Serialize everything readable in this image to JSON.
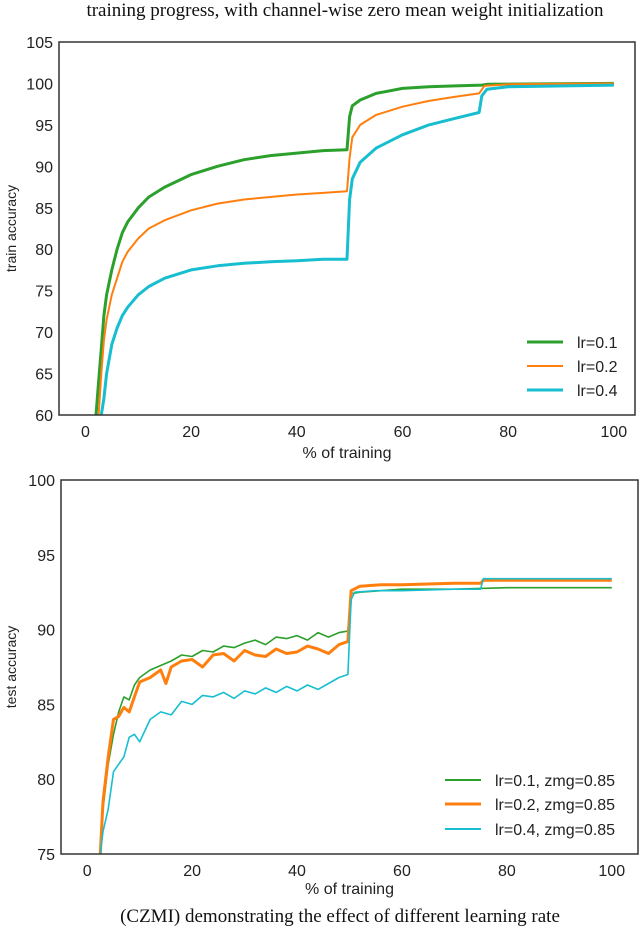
{
  "figure_title": "training progress, with channel-wise zero mean weight initialization",
  "caption": "(CZMI) demonstrating the effect of different learning rate",
  "colors": {
    "lr_0.1": "#2ca02c",
    "lr_0.2": "#ff7f0e",
    "lr_0.4": "#17becf"
  },
  "chart_data": [
    {
      "type": "line",
      "xlabel": "% of training",
      "ylabel": "train accuracy",
      "xlim": [
        -5,
        104
      ],
      "ylim": [
        60,
        105
      ],
      "xticks": [
        "0",
        "20",
        "40",
        "60",
        "80",
        "100"
      ],
      "yticks": [
        "60",
        "65",
        "70",
        "75",
        "80",
        "85",
        "90",
        "95",
        "100",
        "105"
      ],
      "grid": false,
      "legend_position": "bottom-right",
      "series": [
        {
          "name": "lr=0.1",
          "color": "#2ca02c",
          "points": [
            [
              2,
              60
            ],
            [
              2.5,
              64
            ],
            [
              3,
              68
            ],
            [
              3.5,
              72
            ],
            [
              4,
              74.5
            ],
            [
              5,
              77.5
            ],
            [
              6,
              80
            ],
            [
              7,
              82
            ],
            [
              8,
              83.3
            ],
            [
              10,
              85
            ],
            [
              12,
              86.3
            ],
            [
              15,
              87.5
            ],
            [
              20,
              89
            ],
            [
              25,
              90
            ],
            [
              30,
              90.8
            ],
            [
              35,
              91.3
            ],
            [
              40,
              91.6
            ],
            [
              45,
              91.9
            ],
            [
              49.5,
              92
            ],
            [
              50,
              96
            ],
            [
              50.5,
              97.3
            ],
            [
              52,
              98
            ],
            [
              55,
              98.8
            ],
            [
              60,
              99.4
            ],
            [
              65,
              99.6
            ],
            [
              70,
              99.7
            ],
            [
              75,
              99.8
            ],
            [
              76,
              99.9
            ],
            [
              100,
              100
            ]
          ]
        },
        {
          "name": "lr=0.2",
          "color": "#ff7f0e",
          "points": [
            [
              2.5,
              60
            ],
            [
              3,
              65
            ],
            [
              3.5,
              69
            ],
            [
              4,
              71.5
            ],
            [
              5,
              74.5
            ],
            [
              6,
              76.5
            ],
            [
              7,
              78.5
            ],
            [
              8,
              79.7
            ],
            [
              10,
              81.3
            ],
            [
              12,
              82.5
            ],
            [
              15,
              83.5
            ],
            [
              20,
              84.7
            ],
            [
              25,
              85.5
            ],
            [
              30,
              86
            ],
            [
              35,
              86.3
            ],
            [
              40,
              86.6
            ],
            [
              45,
              86.8
            ],
            [
              49.5,
              87
            ],
            [
              50,
              91
            ],
            [
              50.5,
              93.5
            ],
            [
              52,
              95
            ],
            [
              55,
              96.2
            ],
            [
              60,
              97.2
            ],
            [
              65,
              97.9
            ],
            [
              70,
              98.4
            ],
            [
              74.5,
              98.8
            ],
            [
              75.5,
              99.7
            ],
            [
              80,
              99.9
            ],
            [
              100,
              100
            ]
          ]
        },
        {
          "name": "lr=0.4",
          "color": "#17becf",
          "points": [
            [
              3,
              60
            ],
            [
              3.5,
              62
            ],
            [
              4,
              65
            ],
            [
              5,
              68.5
            ],
            [
              6,
              70.5
            ],
            [
              7,
              72
            ],
            [
              8,
              73
            ],
            [
              10,
              74.5
            ],
            [
              12,
              75.5
            ],
            [
              15,
              76.5
            ],
            [
              20,
              77.5
            ],
            [
              25,
              78
            ],
            [
              30,
              78.3
            ],
            [
              35,
              78.5
            ],
            [
              40,
              78.6
            ],
            [
              45,
              78.8
            ],
            [
              49.5,
              78.8
            ],
            [
              50,
              86
            ],
            [
              50.5,
              88.5
            ],
            [
              52,
              90.5
            ],
            [
              55,
              92.2
            ],
            [
              60,
              93.8
            ],
            [
              65,
              95
            ],
            [
              70,
              95.8
            ],
            [
              74.5,
              96.5
            ],
            [
              75,
              98.5
            ],
            [
              76,
              99.3
            ],
            [
              80,
              99.6
            ],
            [
              100,
              99.8
            ]
          ]
        }
      ]
    },
    {
      "type": "line",
      "xlabel": "% of training",
      "ylabel": "test accuracy",
      "xlim": [
        -5,
        105
      ],
      "ylim": [
        75,
        100
      ],
      "xticks": [
        "0",
        "20",
        "40",
        "60",
        "80",
        "100"
      ],
      "yticks": [
        "75",
        "80",
        "85",
        "90",
        "95",
        "100"
      ],
      "grid": false,
      "legend_position": "bottom-right",
      "series": [
        {
          "name": "lr=0.1, zmg=0.85",
          "color": "#2ca02c",
          "points": [
            [
              2.5,
              75
            ],
            [
              3,
              78
            ],
            [
              4,
              81
            ],
            [
              5,
              83
            ],
            [
              6,
              84.5
            ],
            [
              7,
              85.5
            ],
            [
              8,
              85.3
            ],
            [
              9,
              86.3
            ],
            [
              10,
              86.8
            ],
            [
              12,
              87.3
            ],
            [
              14,
              87.6
            ],
            [
              16,
              87.9
            ],
            [
              18,
              88.3
            ],
            [
              20,
              88.2
            ],
            [
              22,
              88.6
            ],
            [
              24,
              88.5
            ],
            [
              26,
              88.9
            ],
            [
              28,
              88.8
            ],
            [
              30,
              89.1
            ],
            [
              32,
              89.3
            ],
            [
              34,
              89
            ],
            [
              36,
              89.5
            ],
            [
              38,
              89.4
            ],
            [
              40,
              89.6
            ],
            [
              42,
              89.3
            ],
            [
              44,
              89.8
            ],
            [
              46,
              89.5
            ],
            [
              48,
              89.8
            ],
            [
              49.7,
              89.9
            ],
            [
              50.3,
              92.4
            ],
            [
              52,
              92.5
            ],
            [
              56,
              92.6
            ],
            [
              60,
              92.7
            ],
            [
              70,
              92.7
            ],
            [
              80,
              92.8
            ],
            [
              90,
              92.8
            ],
            [
              100,
              92.8
            ]
          ]
        },
        {
          "name": "lr=0.2, zmg=0.85",
          "color": "#ff7f0e",
          "points": [
            [
              2.5,
              75
            ],
            [
              3,
              78.5
            ],
            [
              4,
              81.5
            ],
            [
              5,
              84
            ],
            [
              6,
              84.2
            ],
            [
              7,
              84.8
            ],
            [
              8,
              84.5
            ],
            [
              9,
              85.5
            ],
            [
              10,
              86.5
            ],
            [
              12,
              86.8
            ],
            [
              14,
              87.3
            ],
            [
              15,
              86.4
            ],
            [
              16,
              87.5
            ],
            [
              18,
              87.9
            ],
            [
              20,
              88
            ],
            [
              22,
              87.5
            ],
            [
              24,
              88.3
            ],
            [
              26,
              88.4
            ],
            [
              28,
              87.9
            ],
            [
              30,
              88.6
            ],
            [
              32,
              88.3
            ],
            [
              34,
              88.2
            ],
            [
              36,
              88.7
            ],
            [
              38,
              88.4
            ],
            [
              40,
              88.5
            ],
            [
              42,
              88.9
            ],
            [
              44,
              88.7
            ],
            [
              46,
              88.4
            ],
            [
              48,
              89
            ],
            [
              49.7,
              89.2
            ],
            [
              50.3,
              92.6
            ],
            [
              52,
              92.9
            ],
            [
              56,
              93
            ],
            [
              60,
              93
            ],
            [
              70,
              93.1
            ],
            [
              75,
              93.1
            ],
            [
              75.5,
              93.3
            ],
            [
              80,
              93.3
            ],
            [
              90,
              93.3
            ],
            [
              100,
              93.3
            ]
          ]
        },
        {
          "name": "lr=0.4, zmg=0.85",
          "color": "#17becf",
          "points": [
            [
              2.5,
              75
            ],
            [
              3,
              76.5
            ],
            [
              4,
              78
            ],
            [
              5,
              80.5
            ],
            [
              6,
              81
            ],
            [
              7,
              81.5
            ],
            [
              8,
              82.8
            ],
            [
              9,
              83
            ],
            [
              10,
              82.5
            ],
            [
              12,
              84
            ],
            [
              14,
              84.5
            ],
            [
              16,
              84.3
            ],
            [
              18,
              85.2
            ],
            [
              20,
              85
            ],
            [
              22,
              85.6
            ],
            [
              24,
              85.5
            ],
            [
              26,
              85.8
            ],
            [
              28,
              85.4
            ],
            [
              30,
              85.9
            ],
            [
              32,
              85.7
            ],
            [
              34,
              86.1
            ],
            [
              36,
              85.8
            ],
            [
              38,
              86.2
            ],
            [
              40,
              85.9
            ],
            [
              42,
              86.3
            ],
            [
              44,
              86
            ],
            [
              46,
              86.4
            ],
            [
              48,
              86.8
            ],
            [
              49.7,
              87
            ],
            [
              50.3,
              92
            ],
            [
              51,
              92.5
            ],
            [
              55,
              92.6
            ],
            [
              60,
              92.6
            ],
            [
              70,
              92.7
            ],
            [
              75,
              92.7
            ],
            [
              75.5,
              93.4
            ],
            [
              80,
              93.4
            ],
            [
              90,
              93.4
            ],
            [
              100,
              93.4
            ]
          ]
        }
      ]
    }
  ]
}
